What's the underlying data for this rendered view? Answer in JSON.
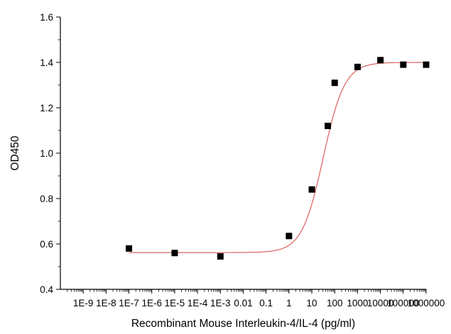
{
  "chart_data": {
    "type": "scatter",
    "xlabel": "Recombinant Mouse Interleukin-4/IL-4 (pg/ml)",
    "ylabel": "OD450",
    "xscale": "log",
    "xlim": [
      1e-10,
      1000000
    ],
    "ylim": [
      0.4,
      1.6
    ],
    "x_ticks": [
      1e-09,
      1e-08,
      1e-07,
      1e-06,
      1e-05,
      0.0001,
      0.001,
      0.01,
      0.1,
      1,
      10,
      100,
      1000,
      10000,
      100000,
      1000000
    ],
    "x_tick_labels": [
      "1E-9",
      "1E-8",
      "1E-7",
      "1E-6",
      "1E-5",
      "1E-4",
      "1E-3",
      "0.01",
      "0.1",
      "1",
      "10",
      "100",
      "1000",
      "10000",
      "100000",
      "1000000"
    ],
    "y_ticks": [
      0.4,
      0.6,
      0.8,
      1.0,
      1.2,
      1.4,
      1.6
    ],
    "y_tick_labels": [
      "0.4",
      "0.6",
      "0.8",
      "1.0",
      "1.2",
      "1.4",
      "1.6"
    ],
    "series": [
      {
        "marker": "square",
        "color": "#000000",
        "x": [
          1e-07,
          1e-05,
          0.001,
          1,
          10,
          50,
          100,
          1000,
          10000,
          100000,
          1000000
        ],
        "y": [
          0.58,
          0.56,
          0.545,
          0.635,
          0.84,
          1.12,
          1.31,
          1.38,
          1.41,
          1.39,
          1.39
        ]
      }
    ],
    "fit": {
      "type": "4PL",
      "color": "#d9534f",
      "bottom": 0.562,
      "top": 1.4,
      "ec50": 31.6,
      "hill": 0.93
    },
    "grid": false,
    "legend": "none"
  }
}
